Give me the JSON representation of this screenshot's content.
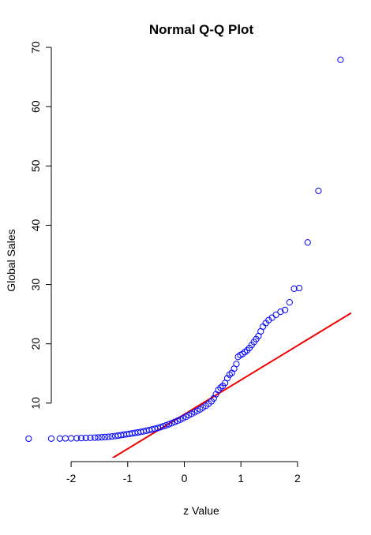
{
  "chart_data": {
    "type": "scatter",
    "title": "Normal Q-Q Plot",
    "xlabel": "z Value",
    "ylabel": "Global Sales",
    "xlim": [
      -2.35,
      2.95
    ],
    "ylim": [
      0.8,
      70
    ],
    "x_ticks": [
      -2,
      -1,
      0,
      1,
      2
    ],
    "y_ticks": [
      10,
      20,
      30,
      40,
      50,
      60,
      70
    ],
    "point_color": "#0000ff",
    "line_color": "#ee0000",
    "reference_line": {
      "intercept": 8.1,
      "slope": 5.8
    },
    "points": [
      [
        -2.75,
        4.0
      ],
      [
        -2.35,
        4.02
      ],
      [
        -2.2,
        4.03
      ],
      [
        -2.1,
        4.05
      ],
      [
        -2.0,
        4.06
      ],
      [
        -1.9,
        4.08
      ],
      [
        -1.82,
        4.1
      ],
      [
        -1.74,
        4.13
      ],
      [
        -1.66,
        4.15
      ],
      [
        -1.58,
        4.18
      ],
      [
        -1.52,
        4.2
      ],
      [
        -1.46,
        4.24
      ],
      [
        -1.4,
        4.28
      ],
      [
        -1.34,
        4.32
      ],
      [
        -1.28,
        4.38
      ],
      [
        -1.22,
        4.45
      ],
      [
        -1.17,
        4.52
      ],
      [
        -1.12,
        4.6
      ],
      [
        -1.07,
        4.68
      ],
      [
        -1.02,
        4.75
      ],
      [
        -0.97,
        4.82
      ],
      [
        -0.92,
        4.9
      ],
      [
        -0.87,
        4.98
      ],
      [
        -0.82,
        5.06
      ],
      [
        -0.77,
        5.14
      ],
      [
        -0.72,
        5.24
      ],
      [
        -0.67,
        5.34
      ],
      [
        -0.62,
        5.45
      ],
      [
        -0.57,
        5.56
      ],
      [
        -0.52,
        5.68
      ],
      [
        -0.47,
        5.8
      ],
      [
        -0.42,
        5.94
      ],
      [
        -0.37,
        6.1
      ],
      [
        -0.32,
        6.26
      ],
      [
        -0.27,
        6.44
      ],
      [
        -0.22,
        6.62
      ],
      [
        -0.17,
        6.82
      ],
      [
        -0.12,
        7.02
      ],
      [
        -0.07,
        7.22
      ],
      [
        -0.02,
        7.45
      ],
      [
        0.03,
        7.7
      ],
      [
        0.08,
        7.95
      ],
      [
        0.13,
        8.2
      ],
      [
        0.18,
        8.45
      ],
      [
        0.23,
        8.7
      ],
      [
        0.28,
        8.95
      ],
      [
        0.33,
        9.25
      ],
      [
        0.38,
        9.55
      ],
      [
        0.43,
        9.9
      ],
      [
        0.48,
        10.3
      ],
      [
        0.52,
        10.8
      ],
      [
        0.56,
        11.5
      ],
      [
        0.6,
        12.2
      ],
      [
        0.64,
        12.6
      ],
      [
        0.68,
        12.9
      ],
      [
        0.72,
        13.4
      ],
      [
        0.76,
        14.2
      ],
      [
        0.8,
        14.8
      ],
      [
        0.84,
        15.1
      ],
      [
        0.88,
        15.8
      ],
      [
        0.92,
        16.6
      ],
      [
        0.95,
        17.8
      ],
      [
        0.99,
        18.1
      ],
      [
        1.03,
        18.3
      ],
      [
        1.07,
        18.6
      ],
      [
        1.11,
        18.9
      ],
      [
        1.15,
        19.3
      ],
      [
        1.19,
        19.8
      ],
      [
        1.23,
        20.3
      ],
      [
        1.27,
        20.8
      ],
      [
        1.31,
        21.3
      ],
      [
        1.35,
        22.1
      ],
      [
        1.39,
        22.9
      ],
      [
        1.44,
        23.5
      ],
      [
        1.49,
        24.0
      ],
      [
        1.55,
        24.4
      ],
      [
        1.62,
        24.9
      ],
      [
        1.7,
        25.4
      ],
      [
        1.78,
        25.7
      ],
      [
        1.86,
        27.0
      ],
      [
        1.94,
        29.3
      ],
      [
        2.03,
        29.4
      ],
      [
        2.18,
        37.1
      ],
      [
        2.37,
        45.8
      ],
      [
        2.76,
        67.9
      ]
    ]
  }
}
